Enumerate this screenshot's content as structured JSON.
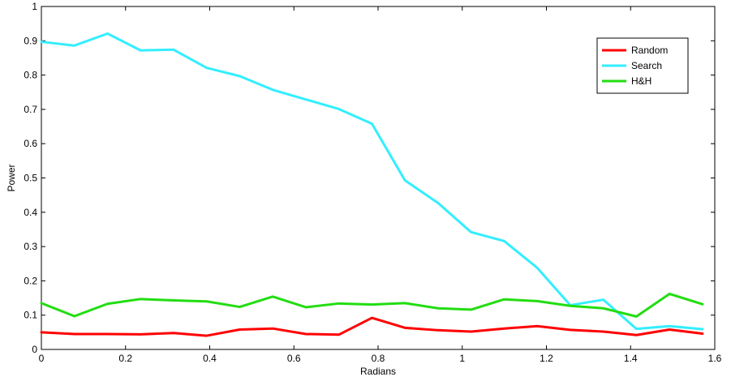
{
  "chart_data": {
    "type": "line",
    "xlabel": "Radians",
    "ylabel": "Power",
    "xlim": [
      0,
      1.6
    ],
    "ylim": [
      0,
      1
    ],
    "xticks": [
      0,
      0.2,
      0.4,
      0.6,
      0.8,
      1,
      1.2,
      1.4,
      1.6
    ],
    "xtick_labels": [
      "0",
      "0.2",
      "0.4",
      "0.6",
      "0.8",
      "1",
      "1.2",
      "1.4",
      "1.6"
    ],
    "yticks": [
      0,
      0.1,
      0.2,
      0.3,
      0.4,
      0.5,
      0.6,
      0.7,
      0.8,
      0.9,
      1
    ],
    "ytick_labels": [
      "0",
      "0.1",
      "0.2",
      "0.3",
      "0.4",
      "0.5",
      "0.6",
      "0.7",
      "0.8",
      "0.9",
      "1"
    ],
    "grid": false,
    "legend_position": "top-right",
    "x": [
      0,
      0.0785,
      0.1571,
      0.2356,
      0.3142,
      0.3927,
      0.4712,
      0.5498,
      0.6283,
      0.7069,
      0.7854,
      0.8639,
      0.9425,
      1.021,
      1.0996,
      1.1781,
      1.2566,
      1.3352,
      1.4137,
      1.4923,
      1.5708
    ],
    "series": [
      {
        "name": "Random",
        "color": "#ff0000",
        "values": [
          0.05,
          0.045,
          0.045,
          0.044,
          0.048,
          0.04,
          0.058,
          0.061,
          0.045,
          0.043,
          0.092,
          0.063,
          0.056,
          0.052,
          0.061,
          0.068,
          0.057,
          0.052,
          0.042,
          0.058,
          0.046
        ]
      },
      {
        "name": "Search",
        "color": "#33eeff",
        "values": [
          0.897,
          0.886,
          0.921,
          0.872,
          0.874,
          0.821,
          0.797,
          0.757,
          0.729,
          0.701,
          0.658,
          0.493,
          0.427,
          0.342,
          0.316,
          0.238,
          0.129,
          0.145,
          0.06,
          0.068,
          0.059
        ]
      },
      {
        "name": "H&H",
        "color": "#22dd11",
        "values": [
          0.135,
          0.097,
          0.133,
          0.147,
          0.143,
          0.14,
          0.124,
          0.154,
          0.123,
          0.134,
          0.131,
          0.135,
          0.12,
          0.116,
          0.146,
          0.141,
          0.127,
          0.12,
          0.096,
          0.162,
          0.132
        ]
      }
    ]
  }
}
